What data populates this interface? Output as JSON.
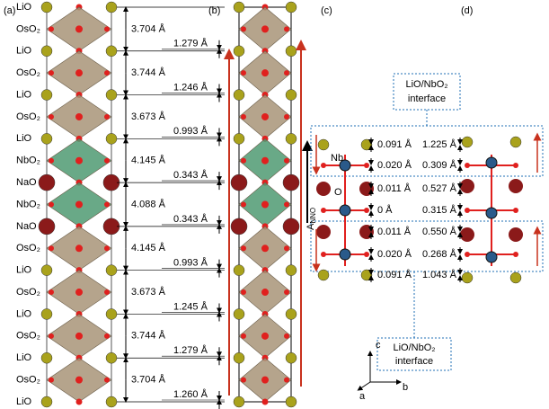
{
  "panel_labels": [
    "(a)",
    "(b)",
    "(c)",
    "(d)"
  ],
  "layers": [
    "LiO",
    "OsO₂",
    "LiO",
    "OsO₂",
    "LiO",
    "OsO₂",
    "LiO",
    "NbO₂",
    "NaO",
    "NbO₂",
    "NaO",
    "OsO₂",
    "LiO",
    "OsO₂",
    "LiO",
    "OsO₂",
    "LiO",
    "OsO₂",
    "LiO"
  ],
  "lattice_spacings": [
    "3.704 Å",
    "3.744 Å",
    "3.673 Å",
    "4.145 Å",
    "4.088 Å",
    "4.145 Å",
    "3.673 Å",
    "3.744 Å",
    "3.704 Å"
  ],
  "layer_offsets_b": [
    "1.279 Å",
    "1.246 Å",
    "0.993 Å",
    "0.343 Å",
    "0.343 Å",
    "0.993 Å",
    "1.245 Å",
    "1.279 Å",
    "1.260 Å"
  ],
  "buckling_c": [
    "0.091 Å",
    "0.020 Å",
    "0.011 Å",
    "0 Å",
    "0.011 Å",
    "0.020 Å",
    "0.091 Å"
  ],
  "buckling_d": [
    "1.225 Å",
    "0.309 Å",
    "0.527 Å",
    "0.315 Å",
    "0.550 Å",
    "0.268 Å",
    "1.043 Å"
  ],
  "atom_labels": [
    "Nb",
    "O"
  ],
  "polarization_label": {
    "main": "A",
    "sub": "NNO"
  },
  "interface_labels": [
    {
      "line1": "LiO/NbO₂",
      "line2": "interface"
    },
    {
      "line1": "LiO/NbO₂",
      "line2": "interface"
    }
  ],
  "axes": [
    "c",
    "a",
    "b"
  ]
}
